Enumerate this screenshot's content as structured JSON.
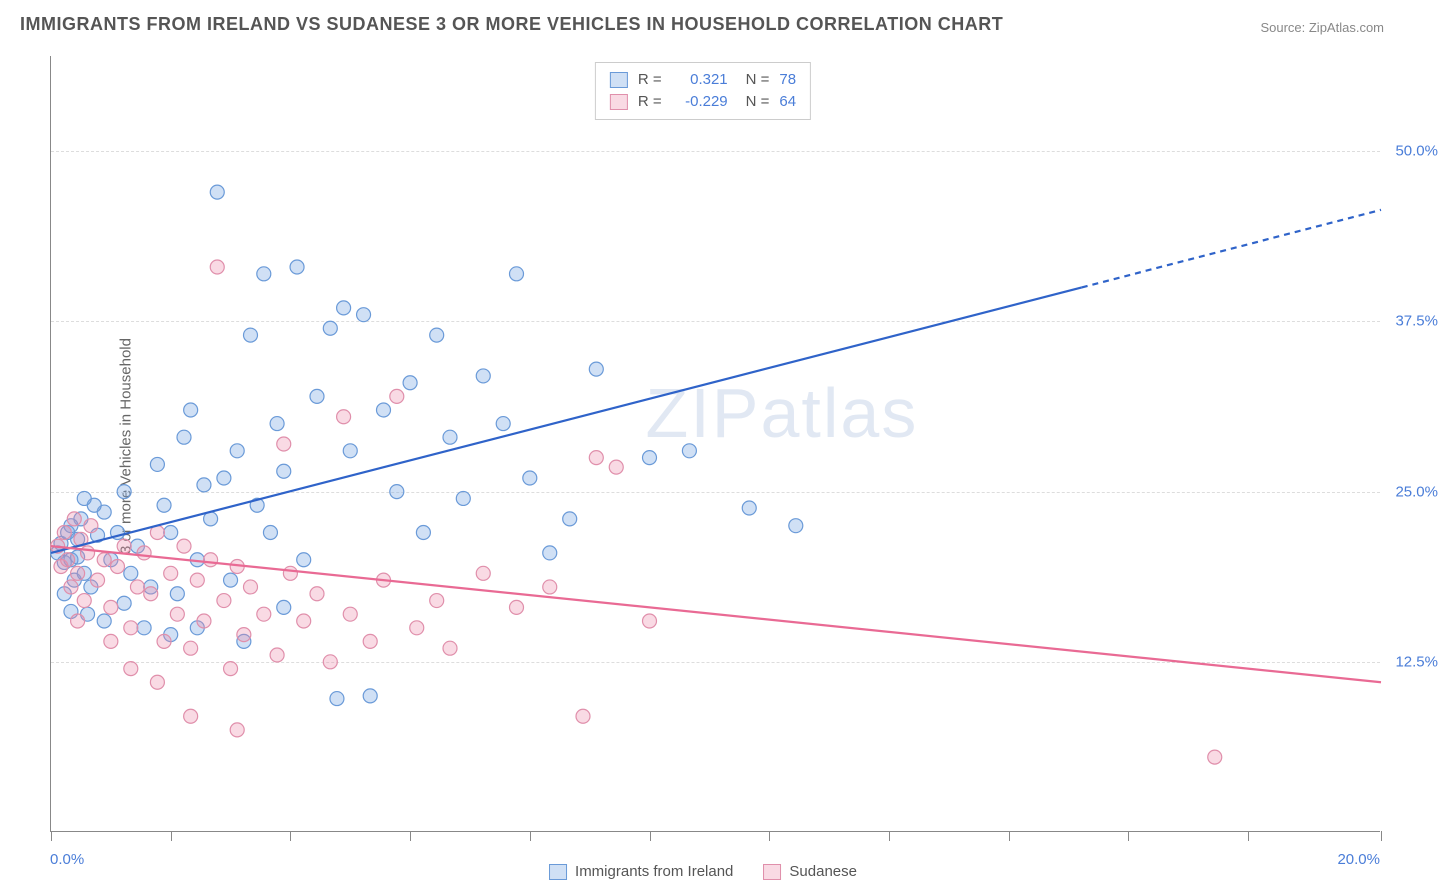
{
  "title": "IMMIGRANTS FROM IRELAND VS SUDANESE 3 OR MORE VEHICLES IN HOUSEHOLD CORRELATION CHART",
  "source_label": "Source: ZipAtlas.com",
  "ylabel": "3 or more Vehicles in Household",
  "watermark": "ZIPatlas",
  "chart": {
    "type": "scatter",
    "xlim": [
      0,
      20
    ],
    "ylim": [
      0,
      57
    ],
    "x_tick_positions": [
      0,
      1.8,
      3.6,
      5.4,
      7.2,
      9.0,
      10.8,
      12.6,
      14.4,
      16.2,
      18.0,
      20.0
    ],
    "x_tick_labels": {
      "first": "0.0%",
      "last": "20.0%"
    },
    "y_grid": [
      12.5,
      25.0,
      37.5,
      50.0
    ],
    "y_grid_labels": [
      "12.5%",
      "25.0%",
      "37.5%",
      "50.0%"
    ],
    "grid_color": "#dddddd",
    "axis_color": "#888888",
    "background_color": "#ffffff",
    "marker_radius": 7,
    "marker_stroke_width": 1.2,
    "line_width": 2.2,
    "series": [
      {
        "name": "Immigrants from Ireland",
        "fill": "rgba(120,165,225,0.35)",
        "stroke": "#6a9ad8",
        "line_color": "#2f63c9",
        "R": "0.321",
        "N": "78",
        "trend": {
          "x1": 0,
          "y1": 20.5,
          "x2": 15.5,
          "y2": 40.0,
          "x1_dash": 15.5,
          "y1_dash": 40.0,
          "x2_dash": 20.0,
          "y2_dash": 45.7
        },
        "points": [
          [
            0.1,
            20.5
          ],
          [
            0.15,
            21.2
          ],
          [
            0.2,
            19.8
          ],
          [
            0.25,
            22.0
          ],
          [
            0.3,
            20.0
          ],
          [
            0.35,
            18.5
          ],
          [
            0.4,
            21.5
          ],
          [
            0.45,
            23.0
          ],
          [
            0.5,
            19.0
          ],
          [
            0.2,
            17.5
          ],
          [
            0.3,
            22.5
          ],
          [
            0.4,
            20.2
          ],
          [
            0.6,
            18.0
          ],
          [
            0.7,
            21.8
          ],
          [
            0.8,
            23.5
          ],
          [
            0.55,
            16.0
          ],
          [
            0.65,
            24.0
          ],
          [
            0.9,
            20.0
          ],
          [
            1.0,
            22.0
          ],
          [
            1.1,
            25.0
          ],
          [
            1.2,
            19.0
          ],
          [
            1.3,
            21.0
          ],
          [
            1.4,
            15.0
          ],
          [
            1.5,
            18.0
          ],
          [
            1.6,
            27.0
          ],
          [
            1.7,
            24.0
          ],
          [
            1.8,
            22.0
          ],
          [
            1.9,
            17.5
          ],
          [
            2.0,
            29.0
          ],
          [
            2.1,
            31.0
          ],
          [
            2.2,
            20.0
          ],
          [
            2.3,
            25.5
          ],
          [
            2.5,
            47.0
          ],
          [
            2.4,
            23.0
          ],
          [
            2.6,
            26.0
          ],
          [
            2.7,
            18.5
          ],
          [
            2.8,
            28.0
          ],
          [
            3.0,
            36.5
          ],
          [
            3.1,
            24.0
          ],
          [
            3.2,
            41.0
          ],
          [
            3.3,
            22.0
          ],
          [
            3.4,
            30.0
          ],
          [
            3.5,
            26.5
          ],
          [
            3.7,
            41.5
          ],
          [
            3.8,
            20.0
          ],
          [
            4.0,
            32.0
          ],
          [
            4.2,
            37.0
          ],
          [
            4.3,
            9.8
          ],
          [
            4.5,
            28.0
          ],
          [
            4.7,
            38.0
          ],
          [
            4.8,
            10.0
          ],
          [
            5.0,
            31.0
          ],
          [
            5.2,
            25.0
          ],
          [
            5.4,
            33.0
          ],
          [
            5.6,
            22.0
          ],
          [
            5.8,
            36.5
          ],
          [
            6.0,
            29.0
          ],
          [
            6.2,
            24.5
          ],
          [
            6.5,
            33.5
          ],
          [
            6.8,
            30.0
          ],
          [
            7.0,
            41.0
          ],
          [
            7.2,
            26.0
          ],
          [
            7.5,
            20.5
          ],
          [
            7.8,
            23.0
          ],
          [
            8.2,
            34.0
          ],
          [
            9.0,
            27.5
          ],
          [
            9.6,
            28.0
          ],
          [
            10.5,
            23.8
          ],
          [
            11.2,
            22.5
          ],
          [
            1.8,
            14.5
          ],
          [
            2.2,
            15.0
          ],
          [
            2.9,
            14.0
          ],
          [
            3.5,
            16.5
          ],
          [
            0.8,
            15.5
          ],
          [
            1.1,
            16.8
          ],
          [
            0.5,
            24.5
          ],
          [
            0.3,
            16.2
          ],
          [
            4.4,
            38.5
          ]
        ]
      },
      {
        "name": "Sudanese",
        "fill": "rgba(235,140,170,0.32)",
        "stroke": "#e08fab",
        "line_color": "#e96a94",
        "R": "-0.229",
        "N": "64",
        "trend": {
          "x1": 0,
          "y1": 21.0,
          "x2": 20.0,
          "y2": 11.0
        },
        "points": [
          [
            0.1,
            21.0
          ],
          [
            0.15,
            19.5
          ],
          [
            0.2,
            22.0
          ],
          [
            0.25,
            20.0
          ],
          [
            0.3,
            18.0
          ],
          [
            0.35,
            23.0
          ],
          [
            0.4,
            19.0
          ],
          [
            0.45,
            21.5
          ],
          [
            0.5,
            17.0
          ],
          [
            0.55,
            20.5
          ],
          [
            0.6,
            22.5
          ],
          [
            0.7,
            18.5
          ],
          [
            0.8,
            20.0
          ],
          [
            0.9,
            16.5
          ],
          [
            1.0,
            19.5
          ],
          [
            1.1,
            21.0
          ],
          [
            1.2,
            15.0
          ],
          [
            1.3,
            18.0
          ],
          [
            1.4,
            20.5
          ],
          [
            1.5,
            17.5
          ],
          [
            1.6,
            22.0
          ],
          [
            1.7,
            14.0
          ],
          [
            1.8,
            19.0
          ],
          [
            1.9,
            16.0
          ],
          [
            2.0,
            21.0
          ],
          [
            2.1,
            13.5
          ],
          [
            2.2,
            18.5
          ],
          [
            2.3,
            15.5
          ],
          [
            2.4,
            20.0
          ],
          [
            2.5,
            41.5
          ],
          [
            2.6,
            17.0
          ],
          [
            2.7,
            12.0
          ],
          [
            2.8,
            19.5
          ],
          [
            2.9,
            14.5
          ],
          [
            3.0,
            18.0
          ],
          [
            3.2,
            16.0
          ],
          [
            3.4,
            13.0
          ],
          [
            3.5,
            28.5
          ],
          [
            3.6,
            19.0
          ],
          [
            3.8,
            15.5
          ],
          [
            4.0,
            17.5
          ],
          [
            4.2,
            12.5
          ],
          [
            4.4,
            30.5
          ],
          [
            4.5,
            16.0
          ],
          [
            4.8,
            14.0
          ],
          [
            5.0,
            18.5
          ],
          [
            5.2,
            32.0
          ],
          [
            5.5,
            15.0
          ],
          [
            5.8,
            17.0
          ],
          [
            6.0,
            13.5
          ],
          [
            6.5,
            19.0
          ],
          [
            7.0,
            16.5
          ],
          [
            7.5,
            18.0
          ],
          [
            8.0,
            8.5
          ],
          [
            8.2,
            27.5
          ],
          [
            8.5,
            26.8
          ],
          [
            9.0,
            15.5
          ],
          [
            17.5,
            5.5
          ],
          [
            1.2,
            12.0
          ],
          [
            1.6,
            11.0
          ],
          [
            2.1,
            8.5
          ],
          [
            2.8,
            7.5
          ],
          [
            0.9,
            14.0
          ],
          [
            0.4,
            15.5
          ]
        ]
      }
    ]
  },
  "legend_bottom": [
    {
      "label": "Immigrants from Ireland",
      "fill": "rgba(120,165,225,0.35)",
      "stroke": "#6a9ad8"
    },
    {
      "label": "Sudanese",
      "fill": "rgba(235,140,170,0.32)",
      "stroke": "#e08fab"
    }
  ]
}
